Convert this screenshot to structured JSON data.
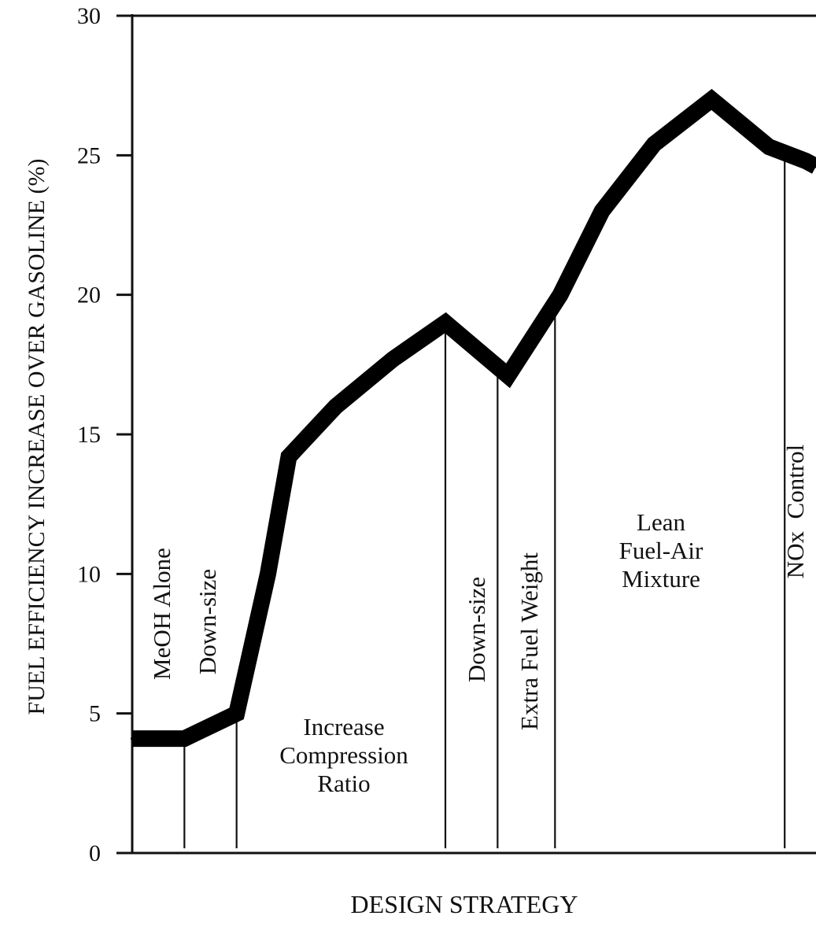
{
  "chart_data": {
    "type": "line",
    "xlabel": "DESIGN STRATEGY",
    "ylabel": "FUEL EFFICIENCY INCREASE OVER GASOLINE (%)",
    "ylim": [
      0,
      30
    ],
    "yticks": [
      "0",
      "5",
      "10",
      "15",
      "20",
      "25",
      "30"
    ],
    "grid": false,
    "x": [
      0,
      1.0,
      2.0,
      2.6,
      3.0,
      3.9,
      5.0,
      6.0,
      7.2,
      8.2,
      9.0,
      10.0,
      11.1,
      12.2,
      12.9,
      13.1
    ],
    "values": [
      4.1,
      4.1,
      5.0,
      10.0,
      14.2,
      16.0,
      17.7,
      19.0,
      17.1,
      20.0,
      23.0,
      25.4,
      27.0,
      25.3,
      24.8,
      24.6
    ],
    "xlim": [
      0,
      13.1
    ],
    "dividers": [
      1.0,
      2.0,
      6.0,
      7.0,
      8.1,
      12.5
    ],
    "regions": [
      {
        "lines": [
          "MeOH Alone"
        ],
        "orientation": "vertical"
      },
      {
        "lines": [
          "Down-size"
        ],
        "orientation": "vertical"
      },
      {
        "lines": [
          "Increase",
          "Compression",
          "Ratio"
        ],
        "orientation": "horizontal"
      },
      {
        "lines": [
          "Down-size"
        ],
        "orientation": "vertical"
      },
      {
        "lines": [
          "Extra Fuel Weight"
        ],
        "orientation": "vertical"
      },
      {
        "lines": [
          "Lean",
          "Fuel-Air",
          "Mixture"
        ],
        "orientation": "horizontal"
      },
      {
        "lines": [
          "NOx  Control"
        ],
        "orientation": "vertical"
      }
    ]
  }
}
